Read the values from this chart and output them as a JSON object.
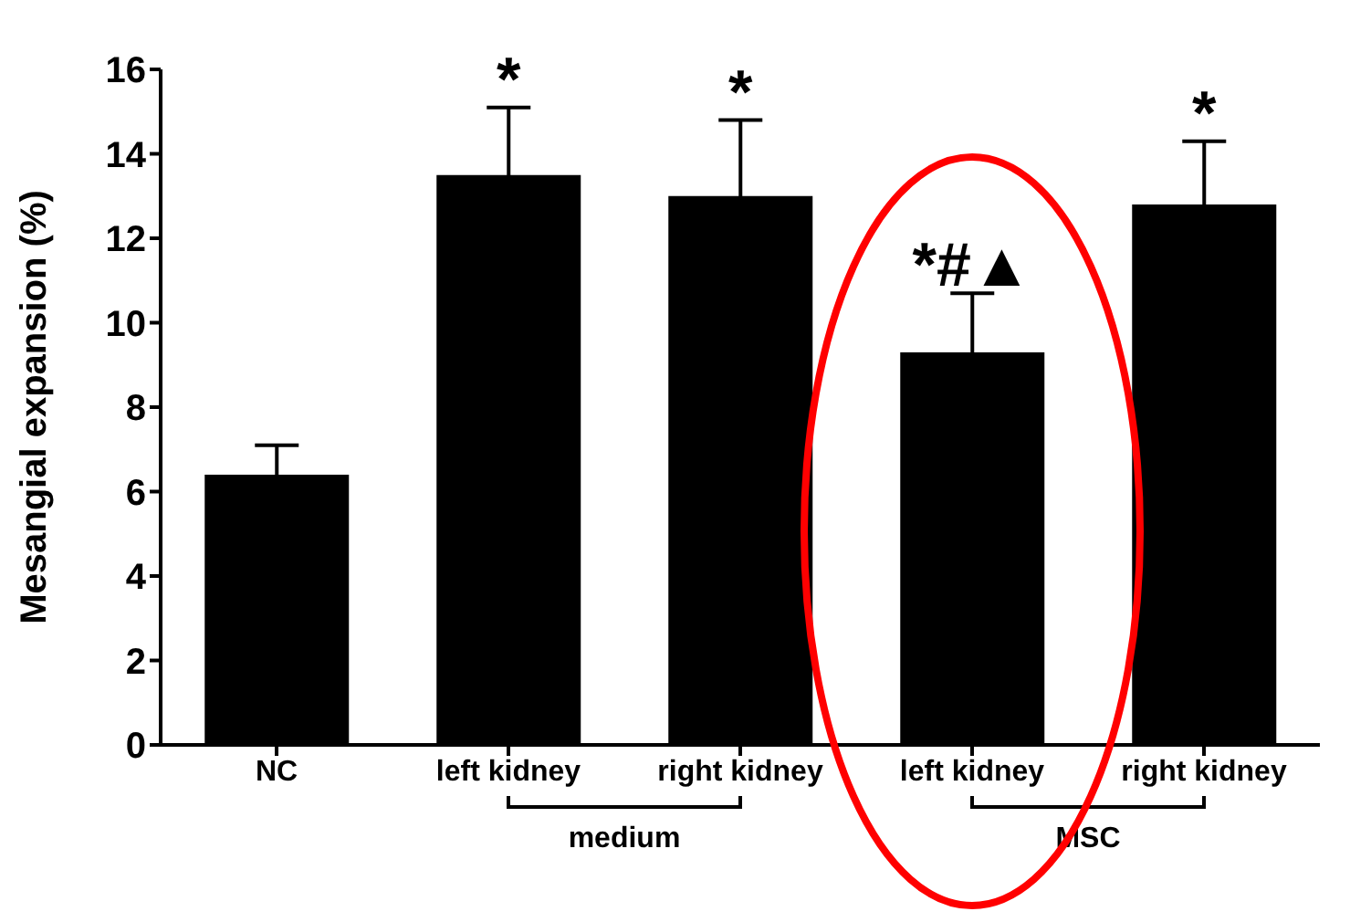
{
  "chart_data": {
    "type": "bar",
    "ylabel": "Mesangial expansion (%)",
    "categories": [
      "NC",
      "left kidney",
      "right kidney",
      "left kidney",
      "right kidney"
    ],
    "values": [
      6.4,
      13.5,
      13.0,
      9.3,
      12.8
    ],
    "errors": [
      0.7,
      1.6,
      1.8,
      1.4,
      1.5
    ],
    "color": "#000000",
    "ylim": [
      0,
      16
    ],
    "yticks": [
      0,
      2,
      4,
      6,
      8,
      10,
      12,
      14,
      16
    ],
    "annotations": [
      "*",
      "*",
      "*#▲",
      "*",
      "medium",
      "MSC"
    ]
  }
}
